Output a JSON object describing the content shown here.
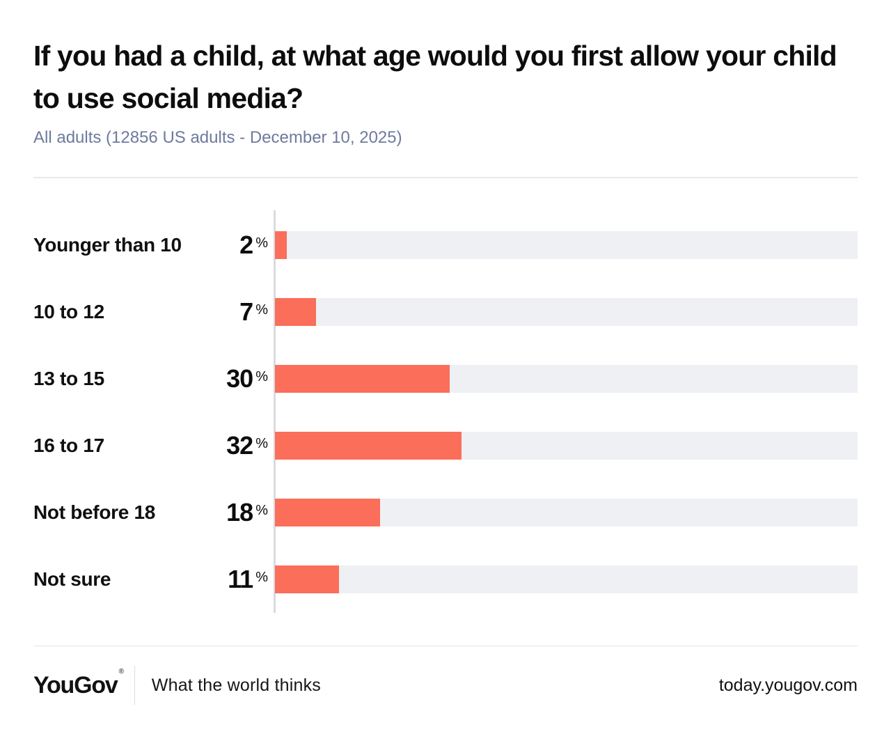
{
  "chart_data": {
    "type": "bar",
    "orientation": "horizontal",
    "title": "If you had a child, at what age would you first allow your child to use social media?",
    "subtitle": "All adults (12856 US adults - December 10, 2025)",
    "categories": [
      "Younger than 10",
      "10 to 12",
      "13 to 15",
      "16 to 17",
      "Not before 18",
      "Not sure"
    ],
    "values": [
      2,
      7,
      30,
      32,
      18,
      11
    ],
    "unit": "%",
    "xlim": [
      0,
      100
    ],
    "grid": false,
    "legend": "none",
    "bar_color": "#fa6e5a",
    "track_color": "#eef0f4"
  },
  "footer": {
    "logo": "YouGov",
    "registered_mark": "®",
    "tagline": "What the world thinks",
    "site": "today.yougov.com"
  }
}
